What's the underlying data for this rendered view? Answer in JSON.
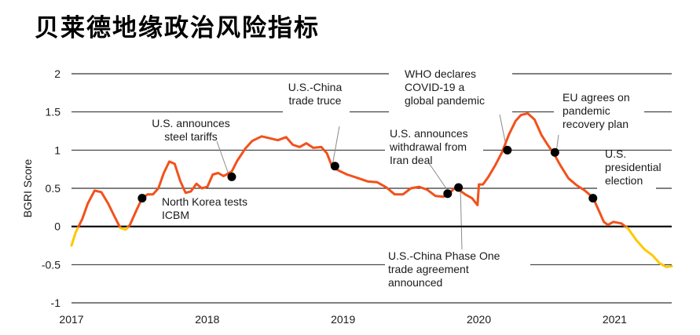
{
  "title": "贝莱德地缘政治风险指标",
  "chart_data": {
    "type": "line",
    "title": "贝莱德地缘政治风险指标",
    "ylabel": "BGRI Score",
    "xlabel": "",
    "ylim": [
      -1,
      2
    ],
    "xlim": [
      2017,
      2021.42
    ],
    "yticks": [
      "2",
      "1.5",
      "1",
      "0.5",
      "0",
      "-0.5",
      "-1"
    ],
    "xticks": [
      "2017",
      "2018",
      "2019",
      "2020",
      "2021"
    ],
    "grid": true,
    "colors": {
      "positive": "#f2511b",
      "negative": "#ffc800",
      "zero_line": "#000000",
      "grid": "#000000"
    },
    "series": [
      {
        "values": [
          [
            2017.0,
            -0.25
          ],
          [
            2017.03,
            -0.08
          ],
          [
            2017.08,
            0.1
          ],
          [
            2017.12,
            0.3
          ],
          [
            2017.17,
            0.47
          ],
          [
            2017.22,
            0.45
          ],
          [
            2017.27,
            0.3
          ],
          [
            2017.32,
            0.12
          ],
          [
            2017.36,
            -0.02
          ],
          [
            2017.4,
            -0.04
          ],
          [
            2017.43,
            0.02
          ],
          [
            2017.48,
            0.22
          ],
          [
            2017.52,
            0.37
          ],
          [
            2017.56,
            0.42
          ],
          [
            2017.6,
            0.42
          ],
          [
            2017.64,
            0.5
          ],
          [
            2017.68,
            0.7
          ],
          [
            2017.72,
            0.85
          ],
          [
            2017.76,
            0.82
          ],
          [
            2017.8,
            0.6
          ],
          [
            2017.84,
            0.44
          ],
          [
            2017.88,
            0.46
          ],
          [
            2017.92,
            0.56
          ],
          [
            2017.96,
            0.5
          ],
          [
            2018.0,
            0.52
          ],
          [
            2018.04,
            0.68
          ],
          [
            2018.08,
            0.7
          ],
          [
            2018.12,
            0.66
          ],
          [
            2018.18,
            0.72
          ],
          [
            2018.22,
            0.86
          ],
          [
            2018.28,
            1.02
          ],
          [
            2018.33,
            1.12
          ],
          [
            2018.4,
            1.18
          ],
          [
            2018.45,
            1.16
          ],
          [
            2018.52,
            1.13
          ],
          [
            2018.58,
            1.17
          ],
          [
            2018.63,
            1.07
          ],
          [
            2018.68,
            1.04
          ],
          [
            2018.73,
            1.09
          ],
          [
            2018.78,
            1.03
          ],
          [
            2018.84,
            1.04
          ],
          [
            2018.88,
            0.96
          ],
          [
            2018.92,
            0.78
          ],
          [
            2018.97,
            0.73
          ],
          [
            2019.03,
            0.68
          ],
          [
            2019.1,
            0.64
          ],
          [
            2019.18,
            0.59
          ],
          [
            2019.25,
            0.58
          ],
          [
            2019.32,
            0.51
          ],
          [
            2019.38,
            0.42
          ],
          [
            2019.44,
            0.42
          ],
          [
            2019.5,
            0.5
          ],
          [
            2019.56,
            0.52
          ],
          [
            2019.62,
            0.48
          ],
          [
            2019.68,
            0.4
          ],
          [
            2019.74,
            0.39
          ],
          [
            2019.78,
            0.43
          ],
          [
            2019.82,
            0.5
          ],
          [
            2019.86,
            0.47
          ],
          [
            2019.9,
            0.42
          ],
          [
            2019.95,
            0.37
          ],
          [
            2019.99,
            0.28
          ],
          [
            2020.0,
            0.55
          ],
          [
            2020.03,
            0.55
          ],
          [
            2020.07,
            0.65
          ],
          [
            2020.12,
            0.8
          ],
          [
            2020.17,
            0.97
          ],
          [
            2020.22,
            1.2
          ],
          [
            2020.27,
            1.38
          ],
          [
            2020.31,
            1.46
          ],
          [
            2020.36,
            1.48
          ],
          [
            2020.41,
            1.4
          ],
          [
            2020.46,
            1.2
          ],
          [
            2020.51,
            1.06
          ],
          [
            2020.55,
            0.96
          ],
          [
            2020.6,
            0.8
          ],
          [
            2020.66,
            0.63
          ],
          [
            2020.72,
            0.54
          ],
          [
            2020.78,
            0.47
          ],
          [
            2020.84,
            0.38
          ],
          [
            2020.88,
            0.22
          ],
          [
            2020.92,
            0.06
          ],
          [
            2020.95,
            0.02
          ],
          [
            2020.99,
            0.06
          ],
          [
            2021.05,
            0.04
          ],
          [
            2021.1,
            -0.03
          ],
          [
            2021.16,
            -0.18
          ],
          [
            2021.22,
            -0.3
          ],
          [
            2021.28,
            -0.38
          ],
          [
            2021.33,
            -0.48
          ],
          [
            2021.38,
            -0.53
          ],
          [
            2021.42,
            -0.52
          ]
        ]
      }
    ],
    "events": [
      {
        "x": 2017.52,
        "y": 0.37,
        "label": [
          "North Korea tests",
          "ICBM"
        ]
      },
      {
        "x": 2018.18,
        "y": 0.65,
        "label": [
          "U.S. announces",
          "steel tariffs"
        ]
      },
      {
        "x": 2018.94,
        "y": 0.79,
        "label": [
          "U.S.-China",
          "trade truce"
        ]
      },
      {
        "x": 2019.77,
        "y": 0.43,
        "label": [
          "U.S. announces",
          "withdrawal from",
          "Iran deal"
        ]
      },
      {
        "x": 2019.85,
        "y": 0.51,
        "label": [
          "U.S.-China Phase One",
          "trade agreement",
          "announced"
        ]
      },
      {
        "x": 2020.21,
        "y": 1.0,
        "label": [
          "WHO declares",
          "COVID-19 a",
          "global pandemic"
        ]
      },
      {
        "x": 2020.56,
        "y": 0.97,
        "label": [
          "EU agrees on",
          "pandemic",
          "recovery plan"
        ]
      },
      {
        "x": 2020.84,
        "y": 0.37,
        "label": [
          "U.S.",
          "presidential",
          "election"
        ]
      }
    ]
  }
}
